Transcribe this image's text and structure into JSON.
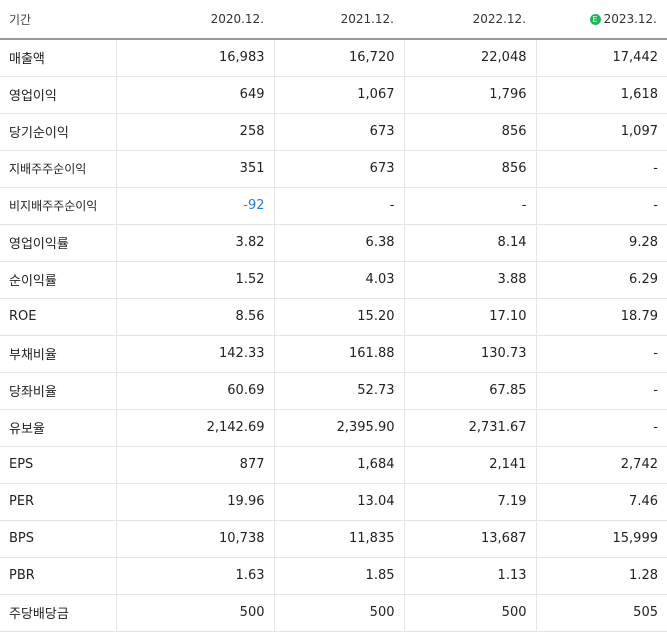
{
  "table": {
    "period_label": "기간",
    "columns": [
      {
        "label": "2020.12.",
        "estimate": false
      },
      {
        "label": "2021.12.",
        "estimate": false
      },
      {
        "label": "2022.12.",
        "estimate": false
      },
      {
        "label": "2023.12.",
        "estimate": true,
        "estimate_mark": "E"
      }
    ],
    "rows": [
      {
        "label": "매출액",
        "values": [
          "16,983",
          "16,720",
          "22,048",
          "17,442"
        ]
      },
      {
        "label": "영업이익",
        "values": [
          "649",
          "1,067",
          "1,796",
          "1,618"
        ]
      },
      {
        "label": "당기순이익",
        "values": [
          "258",
          "673",
          "856",
          "1,097"
        ]
      },
      {
        "label": "지배주주순이익",
        "values": [
          "351",
          "673",
          "856",
          "-"
        ]
      },
      {
        "label": "비지배주주순이익",
        "values": [
          "-92",
          "-",
          "-",
          "-"
        ]
      },
      {
        "label": "영업이익률",
        "values": [
          "3.82",
          "6.38",
          "8.14",
          "9.28"
        ]
      },
      {
        "label": "순이익률",
        "values": [
          "1.52",
          "4.03",
          "3.88",
          "6.29"
        ]
      },
      {
        "label": "ROE",
        "values": [
          "8.56",
          "15.20",
          "17.10",
          "18.79"
        ]
      },
      {
        "label": "부채비율",
        "values": [
          "142.33",
          "161.88",
          "130.73",
          "-"
        ]
      },
      {
        "label": "당좌비율",
        "values": [
          "60.69",
          "52.73",
          "67.85",
          "-"
        ]
      },
      {
        "label": "유보율",
        "values": [
          "2,142.69",
          "2,395.90",
          "2,731.67",
          "-"
        ]
      },
      {
        "label": "EPS",
        "values": [
          "877",
          "1,684",
          "2,141",
          "2,742"
        ]
      },
      {
        "label": "PER",
        "values": [
          "19.96",
          "13.04",
          "7.19",
          "7.46"
        ]
      },
      {
        "label": "BPS",
        "values": [
          "10,738",
          "11,835",
          "13,687",
          "15,999"
        ]
      },
      {
        "label": "PBR",
        "values": [
          "1.63",
          "1.85",
          "1.13",
          "1.28"
        ]
      },
      {
        "label": "주당배당금",
        "values": [
          "500",
          "500",
          "500",
          "505"
        ]
      }
    ]
  },
  "colors": {
    "negative": "#1e7fd8",
    "estimate_badge": "#1eb85a"
  }
}
